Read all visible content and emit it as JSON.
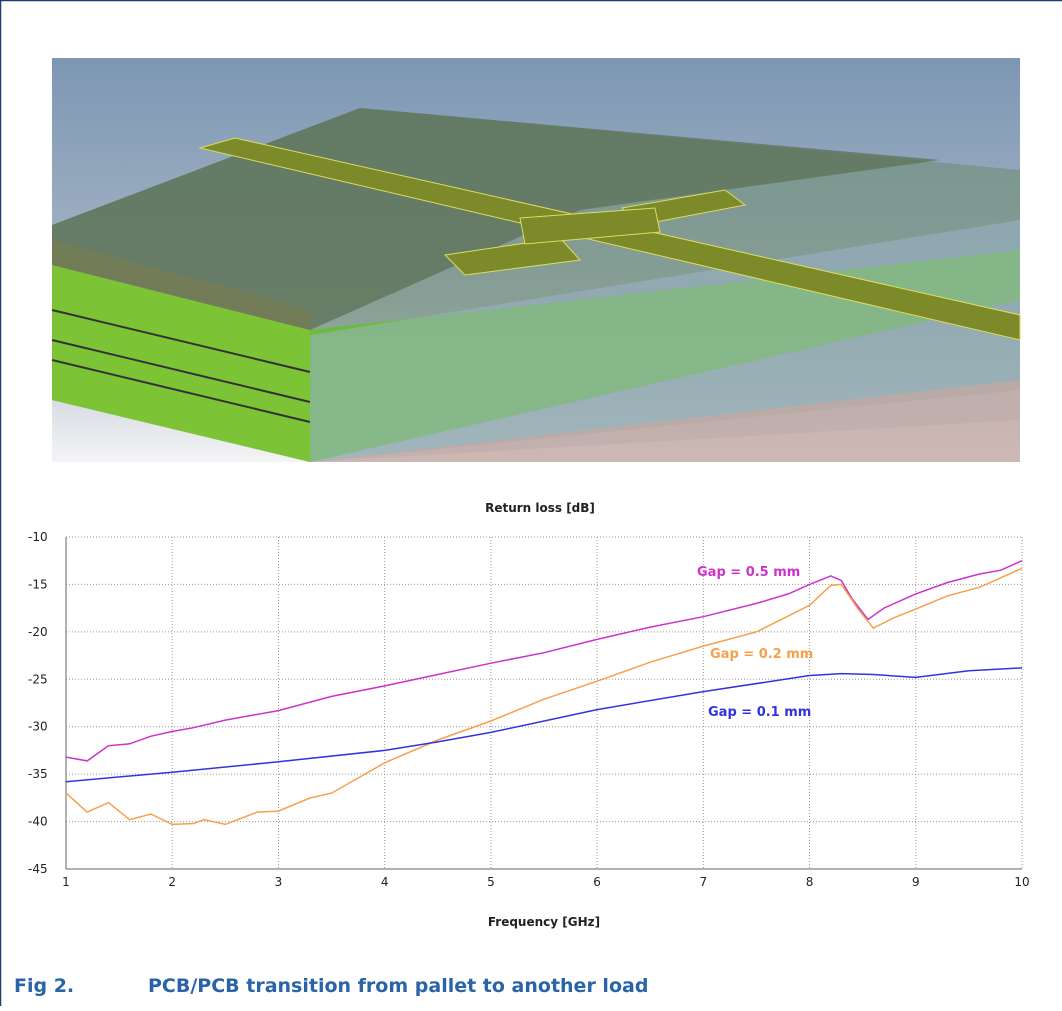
{
  "chart_data": {
    "type": "line",
    "title": "Return loss [dB]",
    "x_label": "Frequency [GHz]",
    "xlim": [
      1,
      10
    ],
    "xticks": [
      1,
      2,
      3,
      4,
      5,
      6,
      7,
      8,
      9,
      10
    ],
    "ylim": [
      -45,
      -10
    ],
    "yticks": [
      -45,
      -40,
      -35,
      -30,
      -25,
      -20,
      -15,
      -10
    ],
    "grid": true,
    "series": [
      {
        "name": "Gap = 0.5 mm",
        "color": "#cc33cc",
        "x": [
          1,
          1.2,
          1.4,
          1.6,
          1.8,
          2,
          2.2,
          2.5,
          3,
          3.5,
          4,
          4.5,
          5,
          5.5,
          6,
          6.5,
          7,
          7.5,
          7.8,
          8,
          8.2,
          8.3,
          8.4,
          8.55,
          8.7,
          9,
          9.3,
          9.6,
          9.8,
          10
        ],
        "values": [
          -33.2,
          -33.6,
          -32,
          -31.8,
          -31,
          -30.5,
          -30.1,
          -29.3,
          -28.3,
          -26.8,
          -25.7,
          -24.5,
          -23.3,
          -22.2,
          -20.8,
          -19.5,
          -18.4,
          -17,
          -16,
          -15,
          -14.1,
          -14.6,
          -16.5,
          -18.7,
          -17.5,
          -16,
          -14.8,
          -13.9,
          -13.5,
          -12.5
        ]
      },
      {
        "name": "Gap = 0.2 mm",
        "color": "#f7a04a",
        "x": [
          1,
          1.2,
          1.4,
          1.6,
          1.8,
          2,
          2.2,
          2.3,
          2.5,
          2.8,
          3,
          3.3,
          3.5,
          4,
          4.5,
          5,
          5.5,
          6,
          6.5,
          7,
          7.5,
          8,
          8.2,
          8.3,
          8.45,
          8.6,
          8.8,
          9,
          9.3,
          9.6,
          10
        ],
        "values": [
          -37,
          -39,
          -38,
          -39.8,
          -39.2,
          -40.3,
          -40.2,
          -39.8,
          -40.3,
          -39,
          -38.9,
          -37.5,
          -37,
          -33.8,
          -31.4,
          -29.4,
          -27.1,
          -25.2,
          -23.2,
          -21.5,
          -20,
          -17.2,
          -15.1,
          -15,
          -17.5,
          -19.6,
          -18.5,
          -17.6,
          -16.2,
          -15.3,
          -13.3
        ]
      },
      {
        "name": "Gap = 0.1 mm",
        "color": "#3333dd",
        "x": [
          1,
          2,
          3,
          4,
          4.5,
          5,
          6,
          7,
          8,
          8.3,
          8.6,
          9,
          9.5,
          10
        ],
        "values": [
          -35.8,
          -34.8,
          -33.7,
          -32.5,
          -31.6,
          -30.6,
          -28.2,
          -26.3,
          -24.6,
          -24.4,
          -24.5,
          -24.8,
          -24.1,
          -23.8
        ]
      }
    ]
  },
  "caption": {
    "label": "Fig 2.",
    "text": "PCB/PCB transition from pallet to another load"
  }
}
